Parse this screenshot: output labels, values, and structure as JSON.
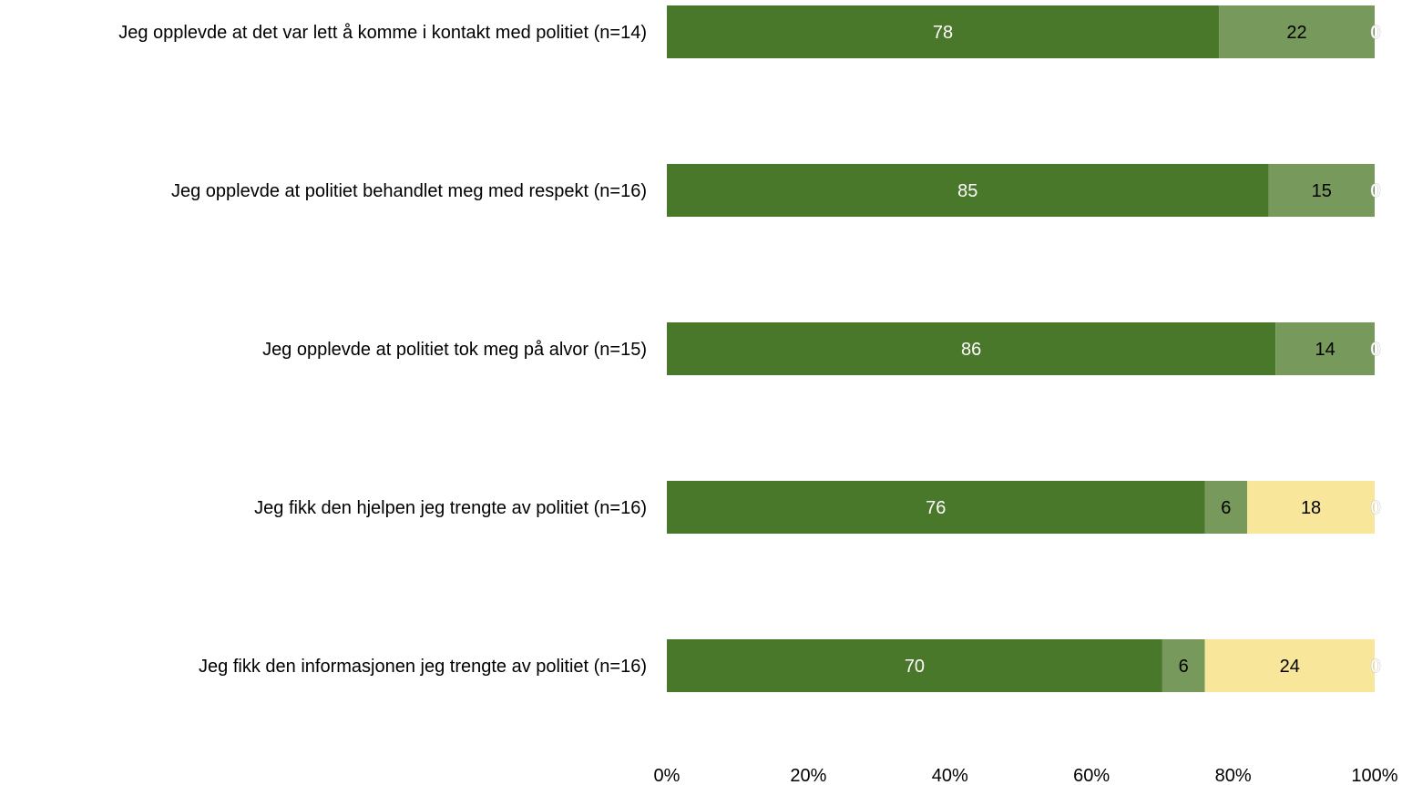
{
  "chart_data": {
    "type": "bar",
    "orientation": "horizontal",
    "stacked": true,
    "categories": [
      "Jeg opplevde at det var lett å komme i kontakt med politiet (n=14)",
      "Jeg opplevde at politiet behandlet meg med respekt (n=16)",
      "Jeg opplevde at politiet tok meg på alvor (n=15)",
      "Jeg fikk den hjelpen jeg trengte av politiet (n=16)",
      "Jeg fikk den informasjonen jeg trengte av politiet (n=16)"
    ],
    "series": [
      {
        "color": "#4a782b",
        "label_color": "#ffffff",
        "values": [
          78,
          85,
          86,
          76,
          70
        ]
      },
      {
        "color": "#78995c",
        "label_color": "#000000",
        "values": [
          22,
          15,
          14,
          6,
          6
        ]
      },
      {
        "color": "#f8e69a",
        "label_color": "#000000",
        "values": [
          0,
          0,
          0,
          18,
          24
        ]
      },
      {
        "color": "#ffffff",
        "label_color": "#ffffff",
        "values": [
          0,
          0,
          0,
          0,
          0
        ]
      }
    ],
    "x_ticks": [
      "0%",
      "20%",
      "40%",
      "60%",
      "80%",
      "100%"
    ],
    "xlim": [
      0,
      100
    ],
    "title": "",
    "xlabel": "",
    "ylabel": "",
    "grid": false,
    "legend": "none"
  }
}
